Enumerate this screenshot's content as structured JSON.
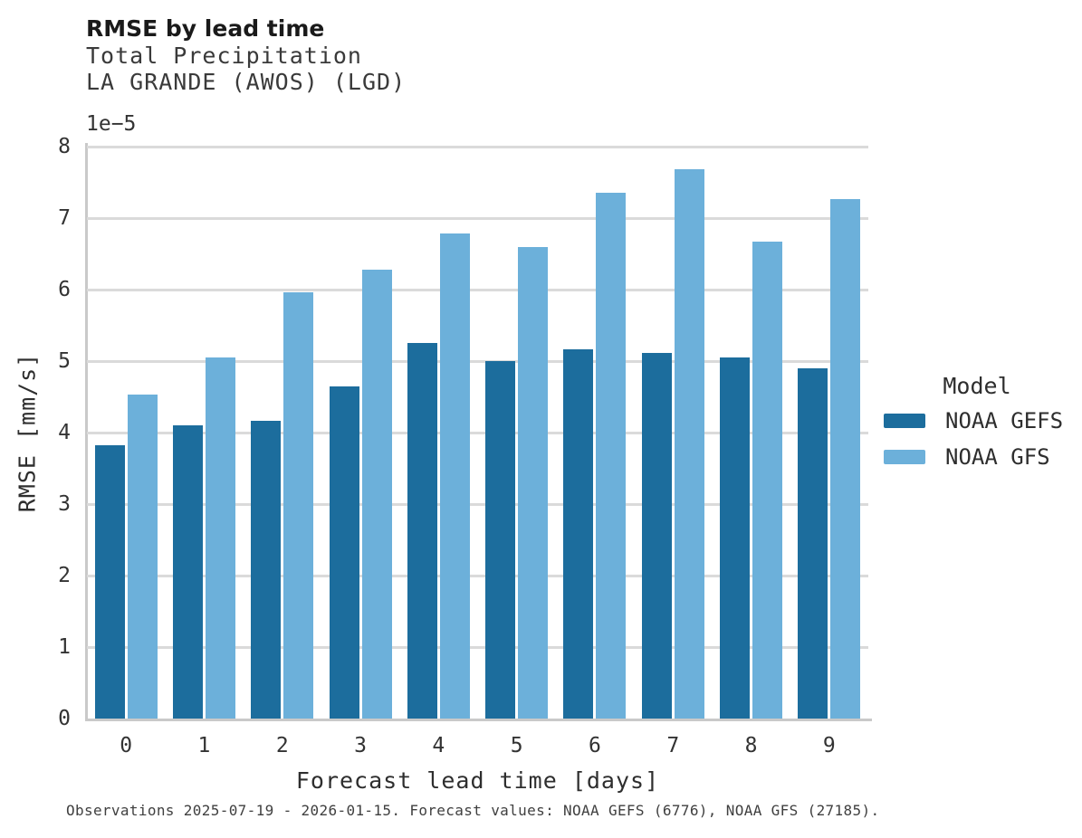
{
  "header": {
    "title": "RMSE by lead time",
    "subtitle_line1": "Total Precipitation",
    "subtitle_line2": "LA GRANDE (AWOS) (LGD)"
  },
  "axes": {
    "offset_text": "1e−5",
    "ylabel": "RMSE [mm/s]",
    "xlabel": "Forecast lead time [days]"
  },
  "legend": {
    "title": "Model",
    "entries": [
      {
        "label": "NOAA GEFS",
        "color": "#1c6d9d"
      },
      {
        "label": "NOAA GFS",
        "color": "#6cb0da"
      }
    ]
  },
  "footer": {
    "caption": "Observations 2025-07-19 - 2026-01-15. Forecast values: NOAA GEFS (6776), NOAA GFS (27185)."
  },
  "colors": {
    "bar_dark": "#1c6d9d",
    "bar_light": "#6cb0da",
    "gridline": "#dadada",
    "spine": "#c9c9c9"
  },
  "chart_data": {
    "type": "bar",
    "title": "RMSE by lead time",
    "subtitle": [
      "Total Precipitation",
      "LA GRANDE (AWOS) (LGD)"
    ],
    "xlabel": "Forecast lead time [days]",
    "ylabel": "RMSE [mm/s]",
    "y_offset_multiplier": "1e-5",
    "categories": [
      "0",
      "1",
      "2",
      "3",
      "4",
      "5",
      "6",
      "7",
      "8",
      "9"
    ],
    "series": [
      {
        "name": "NOAA GEFS",
        "color": "#1c6d9d",
        "values": [
          3.82,
          4.1,
          4.16,
          4.64,
          5.25,
          5.0,
          5.17,
          5.12,
          5.05,
          4.9
        ]
      },
      {
        "name": "NOAA GFS",
        "color": "#6cb0da",
        "values": [
          4.53,
          5.05,
          5.96,
          6.28,
          6.78,
          6.59,
          7.35,
          7.68,
          6.67,
          7.26
        ]
      }
    ],
    "ylim": [
      0,
      8
    ],
    "y_ticks": [
      0,
      1,
      2,
      3,
      4,
      5,
      6,
      7,
      8
    ],
    "grid": true,
    "legend_title": "Model",
    "legend_position": "right-outside"
  }
}
